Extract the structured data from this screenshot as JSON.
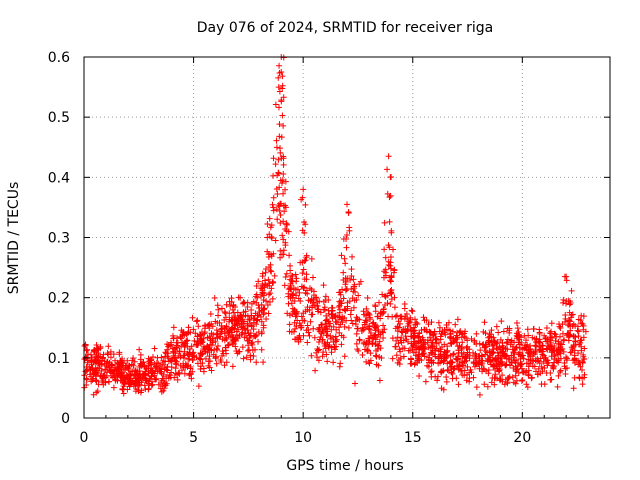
{
  "chart_data": {
    "type": "scatter",
    "title": "Day 076 of 2024, SRMTID for receiver riga",
    "xlabel": "GPS time / hours",
    "ylabel": "SRMTID / TECUs",
    "xlim": [
      0,
      24
    ],
    "ylim": [
      0,
      0.6
    ],
    "xticks": [
      0,
      5,
      10,
      15,
      20
    ],
    "yticks": [
      0,
      0.1,
      0.2,
      0.3,
      0.4,
      0.5,
      0.6
    ],
    "xtick_labels": [
      "0",
      "5",
      "10",
      "15",
      "20"
    ],
    "ytick_labels": [
      "0",
      "0.1",
      "0.2",
      "0.3",
      "0.4",
      "0.5",
      "0.6"
    ],
    "grid": true,
    "marker": "+",
    "color": "#ff0000",
    "series": [
      {
        "name": "SRMTID",
        "description": "Approximate trend envelope of the dense scatter (x in hours, y in TECUs)",
        "x": [
          0.0,
          0.5,
          1.0,
          1.5,
          2.0,
          2.5,
          3.0,
          3.5,
          4.0,
          4.5,
          5.0,
          5.5,
          6.0,
          6.5,
          7.0,
          7.5,
          8.0,
          8.3,
          8.6,
          8.9,
          9.1,
          9.3,
          9.6,
          10.0,
          10.5,
          11.0,
          11.5,
          12.0,
          12.3,
          12.6,
          13.0,
          13.5,
          13.8,
          14.0,
          14.3,
          14.7,
          15.0,
          15.5,
          16.0,
          16.5,
          17.0,
          17.5,
          18.0,
          18.5,
          19.0,
          19.5,
          20.0,
          20.5,
          21.0,
          21.5,
          22.0,
          22.5,
          22.9
        ],
        "y": [
          0.09,
          0.08,
          0.08,
          0.08,
          0.07,
          0.07,
          0.075,
          0.08,
          0.1,
          0.11,
          0.12,
          0.12,
          0.13,
          0.14,
          0.15,
          0.15,
          0.17,
          0.22,
          0.3,
          0.45,
          0.35,
          0.25,
          0.17,
          0.22,
          0.16,
          0.15,
          0.15,
          0.22,
          0.18,
          0.15,
          0.14,
          0.14,
          0.25,
          0.22,
          0.14,
          0.13,
          0.13,
          0.12,
          0.11,
          0.11,
          0.11,
          0.1,
          0.1,
          0.1,
          0.1,
          0.11,
          0.1,
          0.11,
          0.11,
          0.11,
          0.13,
          0.12,
          0.11
        ],
        "spread": [
          0.03,
          0.03,
          0.03,
          0.03,
          0.025,
          0.025,
          0.025,
          0.03,
          0.035,
          0.04,
          0.04,
          0.04,
          0.04,
          0.04,
          0.04,
          0.045,
          0.05,
          0.07,
          0.1,
          0.14,
          0.12,
          0.08,
          0.05,
          0.08,
          0.05,
          0.05,
          0.05,
          0.09,
          0.07,
          0.05,
          0.04,
          0.05,
          0.12,
          0.08,
          0.04,
          0.04,
          0.04,
          0.04,
          0.04,
          0.04,
          0.04,
          0.04,
          0.04,
          0.04,
          0.04,
          0.04,
          0.04,
          0.04,
          0.04,
          0.045,
          0.06,
          0.05,
          0.04
        ],
        "x_range": [
          0.0,
          22.9
        ],
        "y_range": [
          0.03,
          0.6
        ],
        "peaks": [
          {
            "x": 9.0,
            "y": 0.6
          },
          {
            "x": 9.0,
            "y": 0.575
          },
          {
            "x": 10.0,
            "y": 0.38
          },
          {
            "x": 12.0,
            "y": 0.355
          },
          {
            "x": 13.9,
            "y": 0.435
          },
          {
            "x": 14.1,
            "y": 0.28
          },
          {
            "x": 22.0,
            "y": 0.235
          }
        ]
      }
    ]
  }
}
